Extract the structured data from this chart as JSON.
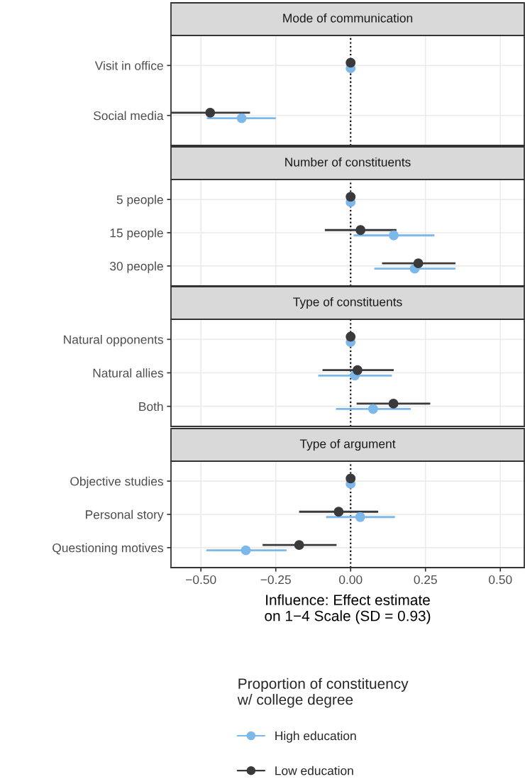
{
  "chart_data": [
    {
      "type": "scatter",
      "orientation": "horizontal",
      "title": "Mode of communication",
      "categories": [
        "Visit in office",
        "Social media"
      ],
      "series": [
        {
          "name": "High education",
          "color": "#7db8ea",
          "values": [
            0,
            -0.364
          ],
          "errors": [
            null,
            [
              -0.48,
              -0.25
            ]
          ]
        },
        {
          "name": "Low education",
          "color": "#3a3a3c",
          "values": [
            0,
            -0.469
          ],
          "errors": [
            null,
            [
              -0.6,
              -0.336
            ]
          ]
        }
      ],
      "xlim": [
        -0.6,
        0.58
      ],
      "xticks": [
        {
          "value": -0.5,
          "label": null
        },
        {
          "value": -0.25,
          "label": null
        },
        {
          "value": 0,
          "label": null
        },
        {
          "value": 0.25,
          "label": null
        },
        {
          "value": 0.5,
          "label": null
        }
      ],
      "legend_title": "Proportion of constituency\nw/ college degree",
      "legend": "bottom",
      "ref_lines": [
        {
          "axis": "x",
          "value": 0,
          "line_style": "dotted",
          "color": "#000000"
        }
      ],
      "grid": true,
      "marker": "circle",
      "tick_labels": "y"
    },
    {
      "type": "scatter",
      "orientation": "horizontal",
      "title": "Number of constituents",
      "categories": [
        "5 people",
        "15 people",
        "30 people"
      ],
      "series": [
        {
          "color": "#7db8ea",
          "values": [
            0,
            0.144,
            0.214
          ],
          "errors": [
            null,
            [
              0.01,
              0.28
            ],
            [
              0.079,
              0.35
            ]
          ]
        },
        {
          "color": "#3a3a3c",
          "values": [
            0,
            0.033,
            0.226
          ],
          "errors": [
            null,
            [
              -0.086,
              0.153
            ],
            [
              0.105,
              0.35
            ]
          ]
        }
      ],
      "xlim": [
        -0.6,
        0.58
      ],
      "xticks": [
        {
          "value": -0.5,
          "label": null
        },
        {
          "value": -0.25,
          "label": null
        },
        {
          "value": 0,
          "label": null
        },
        {
          "value": 0.25,
          "label": null
        },
        {
          "value": 0.5,
          "label": null
        }
      ],
      "ref_lines": [
        {
          "axis": "x",
          "value": 0,
          "line_style": "dotted",
          "color": "#000000"
        }
      ],
      "grid": true,
      "marker": "circle",
      "tick_labels": "y"
    },
    {
      "type": "scatter",
      "orientation": "horizontal",
      "title": "Type of constituents",
      "categories": [
        "Natural opponents",
        "Natural allies",
        "Both"
      ],
      "series": [
        {
          "color": "#7db8ea",
          "values": [
            0,
            0.014,
            0.075
          ],
          "errors": [
            null,
            [
              -0.108,
              0.138
            ],
            [
              -0.049,
              0.201
            ]
          ]
        },
        {
          "color": "#3a3a3c",
          "values": [
            0,
            0.023,
            0.143
          ],
          "errors": [
            null,
            [
              -0.094,
              0.144
            ],
            [
              0.02,
              0.266
            ]
          ]
        }
      ],
      "xlim": [
        -0.6,
        0.58
      ],
      "xticks": [
        {
          "value": -0.5,
          "label": null
        },
        {
          "value": -0.25,
          "label": null
        },
        {
          "value": 0,
          "label": null
        },
        {
          "value": 0.25,
          "label": null
        },
        {
          "value": 0.5,
          "label": null
        }
      ],
      "ref_lines": [
        {
          "axis": "x",
          "value": 0,
          "line_style": "dotted",
          "color": "#000000"
        }
      ],
      "grid": true,
      "marker": "circle",
      "tick_labels": "y"
    },
    {
      "type": "scatter",
      "orientation": "horizontal",
      "title": "Type of argument",
      "categories": [
        "Objective studies",
        "Personal story",
        "Questioning motives"
      ],
      "series": [
        {
          "color": "#7db8ea",
          "values": [
            0,
            0.032,
            -0.35
          ],
          "errors": [
            null,
            [
              -0.082,
              0.148
            ],
            [
              -0.482,
              -0.214
            ]
          ]
        },
        {
          "color": "#3a3a3c",
          "values": [
            0,
            -0.04,
            -0.172
          ],
          "errors": [
            null,
            [
              -0.172,
              0.092
            ],
            [
              -0.294,
              -0.047
            ]
          ]
        }
      ],
      "xlim": [
        -0.6,
        0.58
      ],
      "xticks": [
        {
          "value": -0.5,
          "label": "−0.50"
        },
        {
          "value": -0.25,
          "label": "−0.25"
        },
        {
          "value": 0,
          "label": "0.00"
        },
        {
          "value": 0.25,
          "label": "0.25"
        },
        {
          "value": 0.5,
          "label": "0.50"
        }
      ],
      "xlabel": "Influence: Effect estimate\non 1−4 Scale (SD = 0.93)",
      "ref_lines": [
        {
          "axis": "x",
          "value": 0,
          "line_style": "dotted",
          "color": "#000000"
        }
      ],
      "grid": true,
      "marker": "circle"
    }
  ]
}
